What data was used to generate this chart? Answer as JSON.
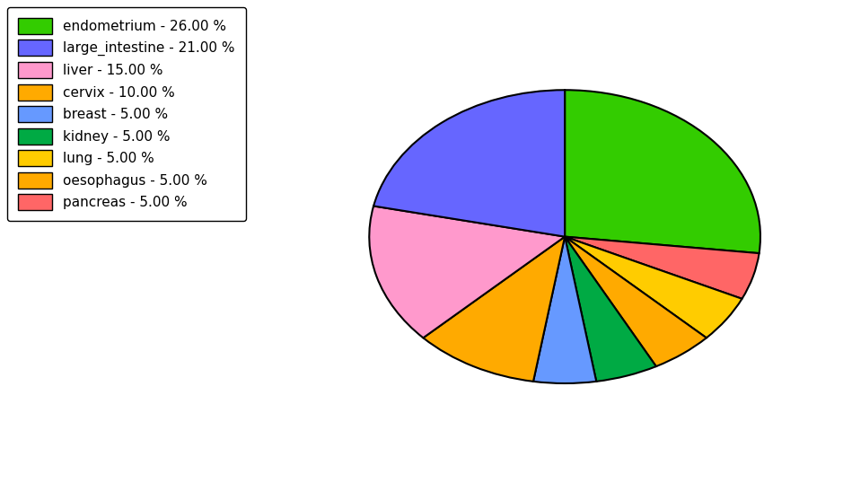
{
  "labels": [
    "endometrium",
    "pancreas",
    "lung",
    "oesophagus",
    "kidney",
    "breast",
    "cervix",
    "liver",
    "large_intestine"
  ],
  "values": [
    26,
    5,
    5,
    5,
    5,
    5,
    10,
    15,
    21
  ],
  "colors": [
    "#33cc00",
    "#ff6666",
    "#ffcc00",
    "#ffaa00",
    "#00aa44",
    "#6699ff",
    "#ffaa00",
    "#ff99cc",
    "#6666ff"
  ],
  "legend_labels": [
    "endometrium - 26.00 %",
    "large_intestine - 21.00 %",
    "liver - 15.00 %",
    "cervix - 10.00 %",
    "breast - 5.00 %",
    "kidney - 5.00 %",
    "lung - 5.00 %",
    "oesophagus - 5.00 %",
    "pancreas - 5.00 %"
  ],
  "legend_colors": [
    "#33cc00",
    "#6666ff",
    "#ff99cc",
    "#ffaa00",
    "#6699ff",
    "#00aa44",
    "#ffcc00",
    "#ffaa00",
    "#ff6666"
  ],
  "background_color": "#ffffff",
  "startangle": 90,
  "figsize": [
    9.39,
    5.38
  ],
  "dpi": 100
}
